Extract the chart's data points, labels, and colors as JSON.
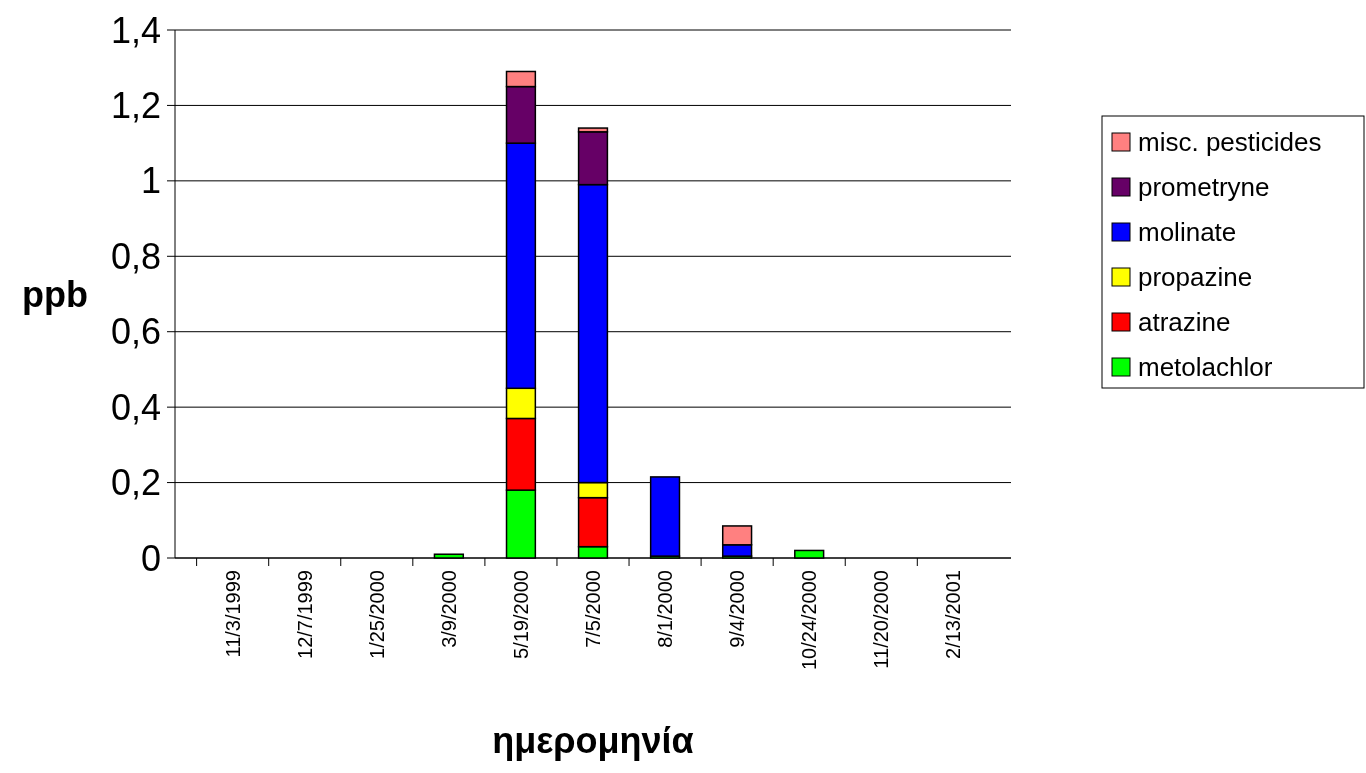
{
  "chart_data": {
    "type": "bar",
    "stacked": true,
    "xlabel": "ημερομηνία",
    "ylabel": "ppb",
    "categories": [
      "11/3/1999",
      "12/7/1999",
      "1/25/2000",
      "3/9/2000",
      "5/19/2000",
      "7/5/2000",
      "8/1/2000",
      "9/4/2000",
      "10/24/2000",
      "11/20/2000",
      "2/13/2001"
    ],
    "series": [
      {
        "name": "metolachlor",
        "color": "#00ff00",
        "values": [
          null,
          null,
          null,
          0.01,
          0.18,
          0.03,
          0.005,
          0.005,
          0.02,
          null,
          null
        ]
      },
      {
        "name": "atrazine",
        "color": "#ff0000",
        "values": [
          null,
          null,
          null,
          null,
          0.19,
          0.13,
          null,
          null,
          null,
          null,
          null
        ]
      },
      {
        "name": "propazine",
        "color": "#ffff00",
        "values": [
          null,
          null,
          null,
          null,
          0.08,
          0.04,
          null,
          null,
          null,
          null,
          null
        ]
      },
      {
        "name": "molinate",
        "color": "#0000ff",
        "values": [
          null,
          null,
          null,
          null,
          0.65,
          0.79,
          0.21,
          0.03,
          null,
          null,
          null
        ]
      },
      {
        "name": "prometryne",
        "color": "#660066",
        "values": [
          null,
          null,
          null,
          null,
          0.15,
          0.14,
          null,
          null,
          null,
          null,
          null
        ]
      },
      {
        "name": "misc. pesticides",
        "color": "#ff8080",
        "values": [
          null,
          null,
          null,
          null,
          0.04,
          0.01,
          null,
          0.05,
          null,
          null,
          null
        ]
      }
    ],
    "ylim": [
      0,
      1.4
    ],
    "yticks": [
      {
        "value": 0,
        "label": "0"
      },
      {
        "value": 0.2,
        "label": "0,2"
      },
      {
        "value": 0.4,
        "label": "0,4"
      },
      {
        "value": 0.6,
        "label": "0,6"
      },
      {
        "value": 0.8,
        "label": "0,8"
      },
      {
        "value": 1,
        "label": "1"
      },
      {
        "value": 1.2,
        "label": "1,2"
      },
      {
        "value": 1.4,
        "label": "1,4"
      }
    ],
    "grid": "y",
    "legend": "right"
  }
}
